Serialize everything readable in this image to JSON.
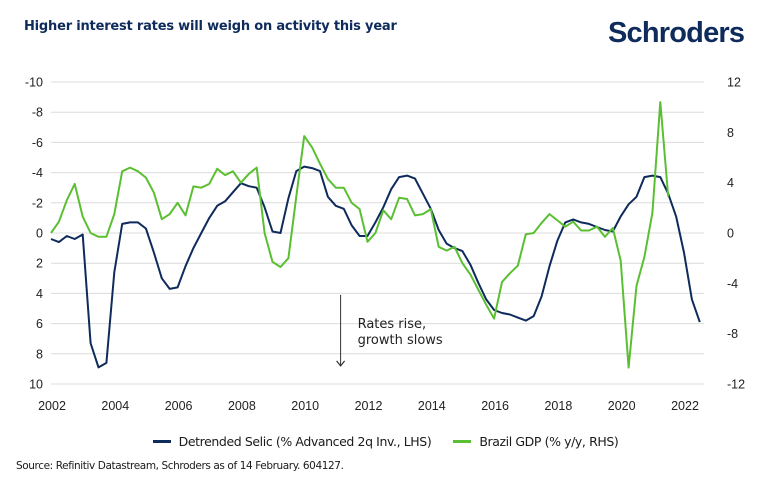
{
  "header": {
    "title": "Higher interest rates will weigh on activity this year",
    "logo": "Schroders"
  },
  "colors": {
    "brand": "#0e2b5c",
    "selic": "#0e2b5c",
    "gdp": "#5bbf32",
    "grid": "#dcdcdc"
  },
  "chart_data": {
    "type": "line",
    "title": "Higher interest rates will weigh on activity this year",
    "xlabel": "",
    "x_ticks": [
      "2002",
      "2004",
      "2006",
      "2008",
      "2010",
      "2012",
      "2014",
      "2016",
      "2018",
      "2020",
      "2022"
    ],
    "x_range": [
      2002,
      2023
    ],
    "left_axis": {
      "label": "Detrended Selic (% Advanced 2q Inv., LHS)",
      "inverted": true,
      "ylim": [
        -10,
        10
      ],
      "ticks": [
        "-10",
        "-8",
        "-6",
        "-4",
        "-2",
        "0",
        "2",
        "4",
        "6",
        "8",
        "10"
      ]
    },
    "right_axis": {
      "label": "Brazil GDP (% y/y, RHS)",
      "ylim": [
        -12,
        12
      ],
      "ticks": [
        "12",
        "8",
        "4",
        "0",
        "-4",
        "-8",
        "-12"
      ]
    },
    "grid": true,
    "legend_position": "bottom",
    "annotation": {
      "line1": "Rates rise,",
      "line2": "growth slows",
      "arrow": "down",
      "x": 2011.15,
      "from_lhs": 4.1,
      "to_lhs": 8.8
    },
    "series": [
      {
        "name": "Detrended Selic (% Advanced 2q Inv., LHS)",
        "axis": "left",
        "color": "#0e2b5c",
        "x_start": 2002.0,
        "x_step": 0.25,
        "values": [
          0.4,
          0.6,
          0.2,
          0.4,
          0.1,
          7.3,
          8.9,
          8.6,
          2.6,
          -0.6,
          -0.7,
          -0.7,
          -0.3,
          1.3,
          3.0,
          3.7,
          3.6,
          2.2,
          1.0,
          0.0,
          -1.0,
          -1.8,
          -2.1,
          -2.7,
          -3.3,
          -3.1,
          -3.0,
          -1.7,
          -0.1,
          0.0,
          -2.3,
          -4.1,
          -4.4,
          -4.3,
          -4.1,
          -2.4,
          -1.8,
          -1.6,
          -0.5,
          0.2,
          0.2,
          -0.7,
          -1.7,
          -2.9,
          -3.7,
          -3.8,
          -3.6,
          -2.6,
          -1.6,
          -0.2,
          0.7,
          1.0,
          1.2,
          2.1,
          3.3,
          4.4,
          5.1,
          5.3,
          5.4,
          5.6,
          5.8,
          5.5,
          4.2,
          2.2,
          0.5,
          -0.7,
          -0.9,
          -0.7,
          -0.6,
          -0.4,
          -0.2,
          -0.1,
          -1.1,
          -1.9,
          -2.4,
          -3.7,
          -3.8,
          -3.7,
          -2.6,
          -1.1,
          1.3,
          4.4,
          5.9
        ]
      },
      {
        "name": "Brazil GDP (% y/y, RHS)",
        "axis": "right",
        "color": "#5bbf32",
        "x_start": 2002.0,
        "x_step": 0.25,
        "values": [
          0.0,
          0.9,
          2.6,
          3.9,
          1.3,
          0.0,
          -0.3,
          -0.3,
          1.5,
          4.9,
          5.2,
          4.9,
          4.4,
          3.2,
          1.1,
          1.5,
          2.4,
          1.4,
          3.7,
          3.6,
          3.9,
          5.1,
          4.6,
          4.9,
          4.0,
          4.7,
          5.2,
          0.0,
          -2.3,
          -2.7,
          -2.0,
          2.9,
          7.7,
          6.8,
          5.5,
          4.3,
          3.6,
          3.6,
          2.4,
          1.9,
          -0.7,
          0.0,
          1.8,
          1.1,
          2.8,
          2.7,
          1.4,
          1.5,
          1.9,
          -1.1,
          -1.4,
          -1.1,
          -2.4,
          -3.3,
          -4.5,
          -5.7,
          -6.8,
          -3.9,
          -3.2,
          -2.6,
          -0.1,
          0.0,
          0.8,
          1.5,
          1.0,
          0.5,
          0.9,
          0.2,
          0.2,
          0.5,
          -0.3,
          0.4,
          -2.2,
          -10.7,
          -4.2,
          -1.9,
          1.6,
          10.4,
          2.9
        ]
      }
    ]
  },
  "legend": {
    "items": [
      {
        "label": "Detrended Selic (% Advanced 2q Inv., LHS)",
        "color": "#0e2b5c"
      },
      {
        "label": "Brazil GDP (% y/y, RHS)",
        "color": "#5bbf32"
      }
    ]
  },
  "footer": {
    "source": "Source: Refinitiv Datastream, Schroders as of 14 February. 604127."
  }
}
